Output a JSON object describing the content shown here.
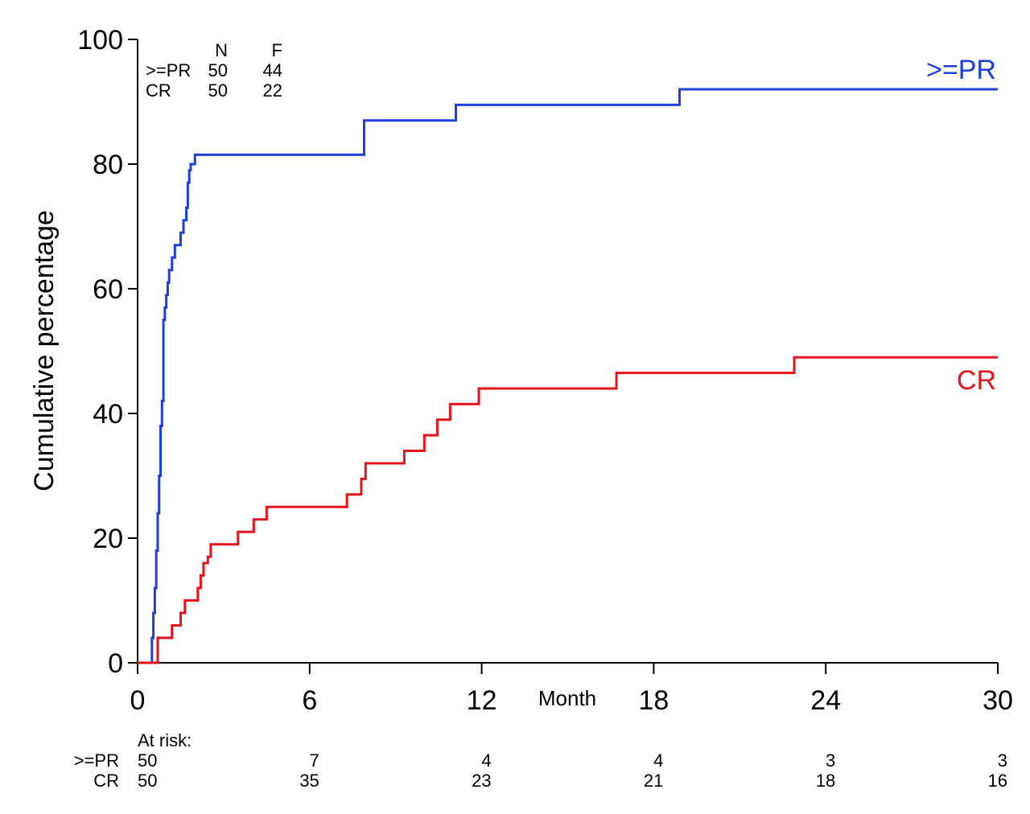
{
  "chart_data": {
    "type": "line",
    "step": true,
    "title": "",
    "xlabel": "Month",
    "ylabel": "Cumulative percentage",
    "xlim": [
      0,
      30
    ],
    "ylim": [
      0,
      100
    ],
    "xticks": [
      "0",
      "6",
      "12",
      "18",
      "24",
      "30"
    ],
    "yticks": [
      "0",
      "20",
      "40",
      "60",
      "80",
      "100"
    ],
    "grid": false,
    "legend_table": {
      "headers": [
        "",
        "N",
        "F"
      ],
      "rows": [
        [
          ">=PR",
          "50",
          "44"
        ],
        [
          "CR",
          "50",
          "22"
        ]
      ]
    },
    "series": [
      {
        "name": ">=PR",
        "color": "#1f3fdc",
        "x": [
          0,
          0.5,
          0.55,
          0.6,
          0.65,
          0.7,
          0.75,
          0.8,
          0.85,
          0.9,
          0.95,
          1.0,
          1.05,
          1.1,
          1.2,
          1.3,
          1.5,
          1.6,
          1.7,
          1.75,
          1.8,
          1.85,
          2.0,
          2.2,
          7.9,
          11.1,
          18.9,
          30
        ],
        "y": [
          0,
          4,
          8,
          12,
          18,
          24,
          30,
          38,
          42,
          55,
          57,
          59,
          61,
          63,
          65,
          67,
          69,
          71,
          73,
          77,
          79,
          80,
          81.5,
          81.5,
          87,
          89.5,
          92,
          92
        ]
      },
      {
        "name": "CR",
        "color": "#e3141c",
        "x": [
          0,
          0.7,
          1.2,
          1.5,
          1.65,
          2.1,
          2.2,
          2.3,
          2.45,
          2.55,
          3.5,
          4.05,
          4.5,
          7.3,
          7.8,
          7.95,
          9.3,
          10.0,
          10.45,
          10.9,
          11.9,
          16.7,
          22.9,
          30
        ],
        "y": [
          0,
          4,
          6,
          8,
          10,
          12,
          14,
          16,
          17,
          19,
          21,
          23,
          25,
          27,
          29.5,
          32,
          34,
          36.5,
          39,
          41.5,
          44,
          46.5,
          49,
          49
        ]
      }
    ],
    "at_risk": {
      "title": "At risk:",
      "rows": [
        {
          "label": ">=PR",
          "values": [
            "50",
            "7",
            "4",
            "4",
            "3",
            "3"
          ]
        },
        {
          "label": "CR",
          "values": [
            "50",
            "35",
            "23",
            "21",
            "18",
            "16"
          ]
        }
      ]
    }
  }
}
